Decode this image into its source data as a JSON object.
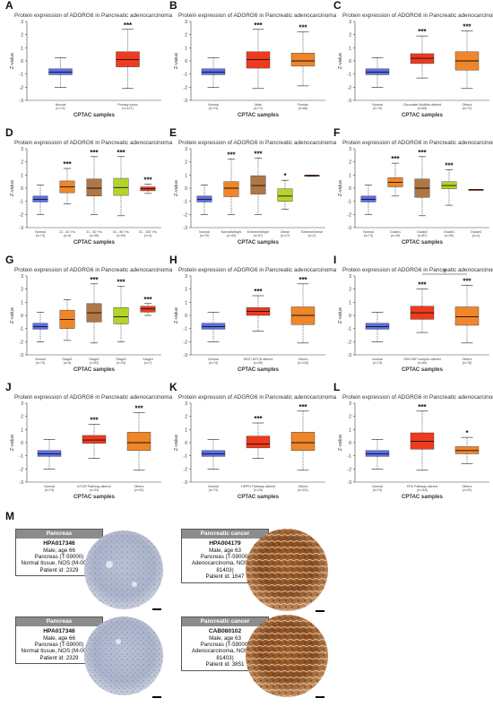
{
  "colors": {
    "normal": "#5b6ee6",
    "tumor_red": "#ee3b1e",
    "orange": "#f0862a",
    "brown": "#b07645",
    "lime": "#b4d42a"
  },
  "chart_data": [
    {
      "letter": "A",
      "type": "box",
      "title": "Protein expression of ADGRG6 in Pancreatic adenocarcinoma",
      "xlabel": "CPTAC samples",
      "ylabel": "Z-value",
      "ylim": [
        -3,
        3
      ],
      "groups": [
        {
          "label": "Normal",
          "n": "(n=74)",
          "color": "normal",
          "q1": -1.05,
          "median": -0.85,
          "q3": -0.6,
          "whisker_low": -2.0,
          "whisker_high": 0.25,
          "sig": ""
        },
        {
          "label": "Primary tumor",
          "n": "(n=137)",
          "color": "tumor_red",
          "q1": -0.45,
          "median": 0.1,
          "q3": 0.7,
          "whisker_low": -2.1,
          "whisker_high": 2.4,
          "sig": "***"
        }
      ]
    },
    {
      "letter": "B",
      "type": "box",
      "title": "Protein expression of ADGRG6 in Pancreatic adenocarcinoma",
      "xlabel": "CPTAC samples",
      "ylabel": "Z-value",
      "ylim": [
        -3,
        3
      ],
      "groups": [
        {
          "label": "Normal",
          "n": "(n=74)",
          "color": "normal",
          "q1": -1.05,
          "median": -0.85,
          "q3": -0.6,
          "whisker_low": -2.0,
          "whisker_high": 0.25,
          "sig": ""
        },
        {
          "label": "Male",
          "n": "(n=71)",
          "color": "tumor_red",
          "q1": -0.55,
          "median": 0.1,
          "q3": 0.7,
          "whisker_low": -2.1,
          "whisker_high": 2.4,
          "sig": "***"
        },
        {
          "label": "Female",
          "n": "(n=66)",
          "color": "orange",
          "q1": -0.4,
          "median": 0.0,
          "q3": 0.6,
          "whisker_low": -1.9,
          "whisker_high": 2.2,
          "sig": "***"
        }
      ]
    },
    {
      "letter": "C",
      "type": "box",
      "title": "Protein expression of ADGRG6 in Pancreatic adenocarcinoma",
      "xlabel": "CPTAC samples",
      "ylabel": "Z-value",
      "ylim": [
        -3,
        3
      ],
      "groups": [
        {
          "label": "Normal",
          "n": "(n=74)",
          "color": "normal",
          "q1": -1.05,
          "median": -0.85,
          "q3": -0.6,
          "whisker_low": -2.0,
          "whisker_high": 0.25,
          "sig": ""
        },
        {
          "label": "Chromatin Modifier altered",
          "n": "(n=60)",
          "color": "tumor_red",
          "q1": -0.2,
          "median": 0.2,
          "q3": 0.55,
          "whisker_low": -1.3,
          "whisker_high": 1.9,
          "sig": "***"
        },
        {
          "label": "Others",
          "n": "(n=72)",
          "color": "orange",
          "q1": -0.7,
          "median": 0.0,
          "q3": 0.7,
          "whisker_low": -2.1,
          "whisker_high": 2.3,
          "sig": "***"
        }
      ]
    },
    {
      "letter": "D",
      "type": "box",
      "title": "Protein expression of ADGRG6 in Pancreatic adenocarcinoma",
      "xlabel": "CPTAC samples",
      "ylabel": "Z-value",
      "ylim": [
        -3,
        3
      ],
      "groups": [
        {
          "label": "Normal",
          "n": "(n=74)",
          "color": "normal",
          "q1": -1.05,
          "median": -0.85,
          "q3": -0.6,
          "whisker_low": -2.0,
          "whisker_high": 0.25,
          "sig": ""
        },
        {
          "label": "21 - 40 Yrs",
          "n": "(n=4)",
          "color": "orange",
          "q1": -0.35,
          "median": 0.1,
          "q3": 0.55,
          "whisker_low": -1.2,
          "whisker_high": 1.5,
          "sig": "***"
        },
        {
          "label": "41 - 60 Yrs",
          "n": "(n=36)",
          "color": "brown",
          "q1": -0.6,
          "median": 0.0,
          "q3": 0.7,
          "whisker_low": -2.0,
          "whisker_high": 2.4,
          "sig": "***"
        },
        {
          "label": "61 - 80 Yrs",
          "n": "(n=93)",
          "color": "lime",
          "q1": -0.55,
          "median": 0.05,
          "q3": 0.75,
          "whisker_low": -2.1,
          "whisker_high": 2.4,
          "sig": "***"
        },
        {
          "label": "81 - 100 Yrs",
          "n": "(n=4)",
          "color": "tumor_red",
          "q1": -0.2,
          "median": -0.05,
          "q3": 0.1,
          "whisker_low": -0.4,
          "whisker_high": 0.3,
          "sig": "***"
        }
      ]
    },
    {
      "letter": "E",
      "type": "box",
      "title": "Protein expression of ADGRG6 in Pancreatic adenocarcinoma",
      "xlabel": "CPTAC samples",
      "ylabel": "Z-value",
      "ylim": [
        -3,
        3
      ],
      "groups": [
        {
          "label": "Normal",
          "n": "(n=74)",
          "color": "normal",
          "q1": -1.05,
          "median": -0.85,
          "q3": -0.6,
          "whisker_low": -2.0,
          "whisker_high": 0.25,
          "sig": ""
        },
        {
          "label": "NormalWeight",
          "n": "(n=43)",
          "color": "orange",
          "q1": -0.65,
          "median": 0.0,
          "q3": 0.5,
          "whisker_low": -2.0,
          "whisker_high": 2.2,
          "sig": "***"
        },
        {
          "label": "ExtremeWeight",
          "n": "(n=57)",
          "color": "brown",
          "q1": -0.45,
          "median": 0.2,
          "q3": 0.95,
          "whisker_low": -2.0,
          "whisker_high": 2.3,
          "sig": "***"
        },
        {
          "label": "Obese",
          "n": "(n=27)",
          "color": "lime",
          "q1": -1.0,
          "median": -0.6,
          "q3": -0.05,
          "whisker_low": -1.6,
          "whisker_high": 0.6,
          "sig": "*"
        },
        {
          "label": "ExtremeObese",
          "n": "(n=2)",
          "color": "tumor_red",
          "q1": 0.9,
          "median": 0.95,
          "q3": 1.0,
          "whisker_low": 0.9,
          "whisker_high": 1.0,
          "sig": ""
        }
      ]
    },
    {
      "letter": "F",
      "type": "box",
      "title": "Protein expression of ADGRG6 in Pancreatic adenocarcinoma",
      "xlabel": "CPTAC samples",
      "ylabel": "Z-value",
      "ylim": [
        -3,
        3
      ],
      "groups": [
        {
          "label": "Normal",
          "n": "(n=74)",
          "color": "normal",
          "q1": -1.05,
          "median": -0.85,
          "q3": -0.6,
          "whisker_low": -2.0,
          "whisker_high": 0.25,
          "sig": ""
        },
        {
          "label": "Grade1",
          "n": "(n=18)",
          "color": "orange",
          "q1": 0.1,
          "median": 0.45,
          "q3": 0.8,
          "whisker_low": -0.6,
          "whisker_high": 1.9,
          "sig": "***"
        },
        {
          "label": "Grade2",
          "n": "(n=87)",
          "color": "brown",
          "q1": -0.7,
          "median": 0.0,
          "q3": 0.7,
          "whisker_low": -2.1,
          "whisker_high": 2.4,
          "sig": "***"
        },
        {
          "label": "Grade3",
          "n": "(n=30)",
          "color": "lime",
          "q1": -0.05,
          "median": 0.2,
          "q3": 0.5,
          "whisker_low": -1.3,
          "whisker_high": 1.4,
          "sig": "***"
        },
        {
          "label": "Grade4",
          "n": "(n=1)",
          "color": "tumor_red",
          "q1": -0.1,
          "median": -0.1,
          "q3": -0.1,
          "whisker_low": -0.1,
          "whisker_high": -0.1,
          "sig": ""
        }
      ]
    },
    {
      "letter": "G",
      "type": "box",
      "title": "Protein expression of ADGRG6 in Pancreatic adenocarcinoma",
      "xlabel": "CPTAC samples",
      "ylabel": "Z-value",
      "ylim": [
        -3,
        3
      ],
      "groups": [
        {
          "label": "Normal",
          "n": "(n=74)",
          "color": "normal",
          "q1": -1.05,
          "median": -0.85,
          "q3": -0.6,
          "whisker_low": -2.0,
          "whisker_high": 0.25,
          "sig": ""
        },
        {
          "label": "Stage1",
          "n": "(n=4)",
          "color": "orange",
          "q1": -1.0,
          "median": -0.3,
          "q3": 0.4,
          "whisker_low": -1.9,
          "whisker_high": 1.2,
          "sig": ""
        },
        {
          "label": "Stage2",
          "n": "(n=83)",
          "color": "brown",
          "q1": -0.5,
          "median": 0.2,
          "q3": 0.9,
          "whisker_low": -2.1,
          "whisker_high": 2.4,
          "sig": "***"
        },
        {
          "label": "Stage3",
          "n": "(n=33)",
          "color": "lime",
          "q1": -0.65,
          "median": -0.1,
          "q3": 0.6,
          "whisker_low": -2.0,
          "whisker_high": 2.2,
          "sig": "***"
        },
        {
          "label": "Stage4",
          "n": "(n=7)",
          "color": "tumor_red",
          "q1": 0.25,
          "median": 0.5,
          "q3": 0.7,
          "whisker_low": 0.0,
          "whisker_high": 0.9,
          "sig": "***"
        }
      ]
    },
    {
      "letter": "H",
      "type": "box",
      "title": "Protein expression of ADGRG6 in Pancreatic adenocarcinoma",
      "xlabel": "CPTAC samples",
      "ylabel": "Z-value",
      "ylim": [
        -3,
        3
      ],
      "groups": [
        {
          "label": "Normal",
          "n": "(n=74)",
          "color": "normal",
          "q1": -1.05,
          "median": -0.85,
          "q3": -0.6,
          "whisker_low": -2.0,
          "whisker_high": 0.25,
          "sig": ""
        },
        {
          "label": "WNT/ MYCN altered",
          "n": "(n=35)",
          "color": "tumor_red",
          "q1": 0.0,
          "median": 0.3,
          "q3": 0.6,
          "whisker_low": -1.2,
          "whisker_high": 1.5,
          "sig": "***"
        },
        {
          "label": "Others",
          "n": "(n=133)",
          "color": "orange",
          "q1": -0.7,
          "median": 0.0,
          "q3": 0.65,
          "whisker_low": -2.1,
          "whisker_high": 2.4,
          "sig": "***"
        }
      ]
    },
    {
      "letter": "I",
      "type": "box",
      "title": "Protein expression of ADGRG6 in Pancreatic adenocarcinoma",
      "xlabel": "CPTAC samples",
      "ylabel": "Z-value",
      "ylim": [
        -3,
        3
      ],
      "groups": [
        {
          "label": "SWI-SNF complex altered",
          "n": "(n=60)",
          "color": "tumor_red",
          "q1": -0.3,
          "median": 0.2,
          "q3": 0.7,
          "whisker_low": -1.3,
          "whisker_high": 2.0,
          "sig": "***"
        },
        {
          "label": "Others",
          "n": "(n=78)",
          "color": "orange",
          "q1": -0.75,
          "median": -0.1,
          "q3": 0.65,
          "whisker_low": -2.1,
          "whisker_high": 2.3,
          "sig": "***"
        }
      ],
      "prepend_normal": {
        "label": "Normal",
        "n": "(n=74)",
        "color": "normal",
        "q1": -1.05,
        "median": -0.85,
        "q3": -0.6,
        "whisker_low": -2.0,
        "whisker_high": 0.25,
        "sig": ""
      },
      "bracket": "#"
    },
    {
      "letter": "J",
      "type": "box",
      "title": "Protein expression of ADGRG6 in Pancreatic adenocarcinoma",
      "xlabel": "CPTAC samples",
      "ylabel": "Z-value",
      "ylim": [
        -3,
        3
      ],
      "groups": [
        {
          "label": "Normal",
          "n": "(n=74)",
          "color": "normal",
          "q1": -1.05,
          "median": -0.85,
          "q3": -0.6,
          "whisker_low": -2.0,
          "whisker_high": 0.25,
          "sig": ""
        },
        {
          "label": "mTOR Pathway altered",
          "n": "(n=44)",
          "color": "tumor_red",
          "q1": -0.05,
          "median": 0.2,
          "q3": 0.55,
          "whisker_low": -1.2,
          "whisker_high": 1.4,
          "sig": "***"
        },
        {
          "label": "Others",
          "n": "(n=92)",
          "color": "orange",
          "q1": -0.6,
          "median": 0.0,
          "q3": 0.8,
          "whisker_low": -2.1,
          "whisker_high": 2.3,
          "sig": "***"
        }
      ]
    },
    {
      "letter": "K",
      "type": "box",
      "title": "Protein expression of ADGRG6 in Pancreatic adenocarcinoma",
      "xlabel": "CPTAC samples",
      "ylabel": "Z-value",
      "ylim": [
        -3,
        3
      ],
      "groups": [
        {
          "label": "Normal",
          "n": "(n=74)",
          "color": "normal",
          "q1": -1.05,
          "median": -0.85,
          "q3": -0.6,
          "whisker_low": -2.0,
          "whisker_high": 0.25,
          "sig": ""
        },
        {
          "label": "HIPPO Pathway altered",
          "n": "(n=25)",
          "color": "tumor_red",
          "q1": -0.4,
          "median": -0.1,
          "q3": 0.5,
          "whisker_low": -1.2,
          "whisker_high": 1.5,
          "sig": "***"
        },
        {
          "label": "Others",
          "n": "(n=111)",
          "color": "orange",
          "q1": -0.6,
          "median": 0.0,
          "q3": 0.8,
          "whisker_low": -2.1,
          "whisker_high": 2.4,
          "sig": "***"
        }
      ]
    },
    {
      "letter": "L",
      "type": "box",
      "title": "Protein expression of ADGRG6 in Pancreatic adenocarcinoma",
      "xlabel": "CPTAC samples",
      "ylabel": "Z-value",
      "ylim": [
        -3,
        3
      ],
      "groups": [
        {
          "label": "Normal",
          "n": "(n=74)",
          "color": "normal",
          "q1": -1.05,
          "median": -0.85,
          "q3": -0.6,
          "whisker_low": -2.0,
          "whisker_high": 0.25,
          "sig": ""
        },
        {
          "label": "RTK Pathway altered",
          "n": "(n=116)",
          "color": "tumor_red",
          "q1": -0.5,
          "median": 0.1,
          "q3": 0.75,
          "whisker_low": -2.1,
          "whisker_high": 2.4,
          "sig": "***"
        },
        {
          "label": "Others",
          "n": "(n=20)",
          "color": "orange",
          "q1": -0.85,
          "median": -0.6,
          "q3": -0.3,
          "whisker_low": -1.6,
          "whisker_high": 0.4,
          "sig": "*"
        }
      ]
    }
  ],
  "panel_m": {
    "letter": "M",
    "cards": [
      {
        "header": "Pancreas",
        "id": "HPA017346",
        "lines": [
          "Male, age 66",
          "Pancreas (T-59000)",
          "Normal tissue, NOS (M-00100)",
          "Patient id: 2329"
        ],
        "stain": "normal"
      },
      {
        "header": "Pancreatic cancer",
        "id": "HPA004179",
        "lines": [
          "Male, age 63",
          "Pancreas (T-59000)",
          "Adenocarcinoma, NOS (M-81403)",
          "Patient id: 1647"
        ],
        "stain": "tumor"
      },
      {
        "header": "Pancreas",
        "id": "HPA017346",
        "lines": [
          "Male, age 66",
          "Pancreas (T-59000)",
          "Normal tissue, NOS (M-00100)",
          "Patient id: 2329"
        ],
        "stain": "normal"
      },
      {
        "header": "Pancreatic cancer",
        "id": "CAB080102",
        "lines": [
          "Male, age 63",
          "Pancreas (T-59000)",
          "Adenocarcinoma, NOS (M-81403)",
          "Patient id: 3851"
        ],
        "stain": "tumor"
      }
    ]
  }
}
